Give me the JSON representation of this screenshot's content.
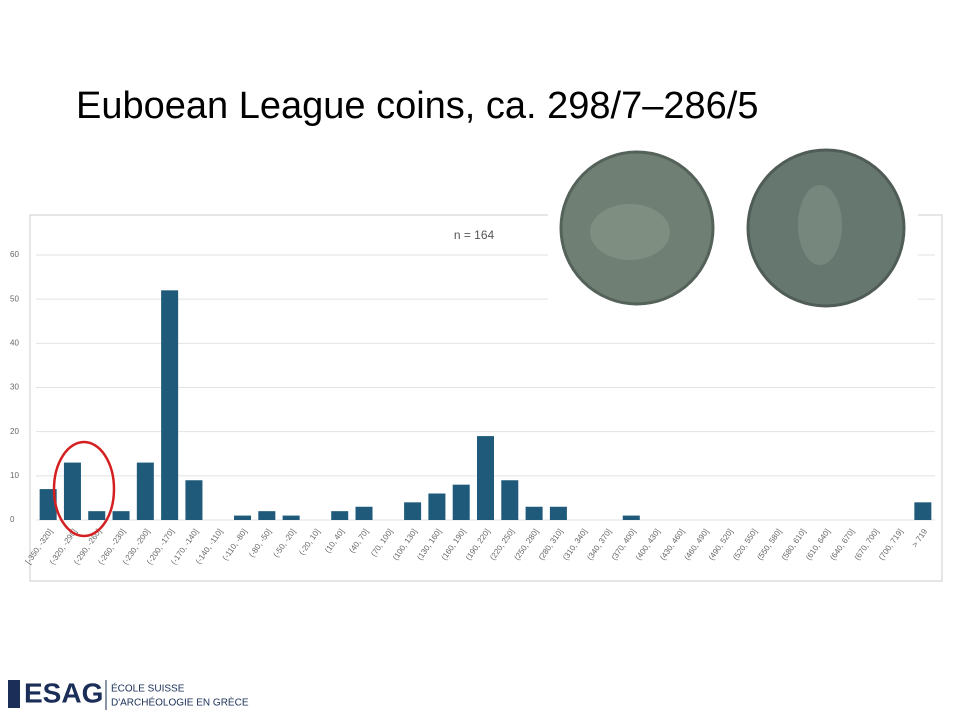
{
  "slide_title": "Euboean League coins, ca. 298/7–286/5",
  "footer": {
    "logo": "ESAG",
    "institution_line1": "ÉCOLE SUISSE",
    "institution_line2": "D'ARCHÉOLOGIE EN GRÈCE"
  },
  "chart_data": {
    "type": "bar",
    "title": "n = 164",
    "color": "#1f5a7a",
    "grid": true,
    "categories": [
      "[-350, -320]",
      "(-320, -290]",
      "(-290, -260]",
      "(-260, -230]",
      "(-230, -200]",
      "(-200, -170]",
      "(-170, -140]",
      "(-140, -110]",
      "(-110, -80]",
      "(-80, -50]",
      "(-50, -20]",
      "(-20, 10]",
      "(10, 40]",
      "(40, 70]",
      "(70, 100]",
      "(100, 130]",
      "(130, 160]",
      "(160, 190]",
      "(190, 220]",
      "(220, 250]",
      "(250, 280]",
      "(280, 310]",
      "(310, 340]",
      "(340, 370]",
      "(370, 400]",
      "(400, 430]",
      "(430, 460]",
      "(460, 490]",
      "(490, 520]",
      "(520, 550]",
      "(550, 580]",
      "(580, 610]",
      "(610, 640]",
      "(640, 670]",
      "(670, 700]",
      "(700, 719]",
      "> 719"
    ],
    "values": [
      7,
      13,
      2,
      2,
      13,
      52,
      9,
      0,
      1,
      2,
      1,
      0,
      2,
      3,
      0,
      4,
      6,
      8,
      19,
      9,
      3,
      3,
      0,
      0,
      1,
      0,
      0,
      0,
      0,
      0,
      0,
      0,
      0,
      0,
      0,
      0,
      4
    ],
    "ylim": [
      0,
      60
    ],
    "yticks": [
      0,
      10,
      20,
      30,
      40,
      50,
      60
    ]
  }
}
